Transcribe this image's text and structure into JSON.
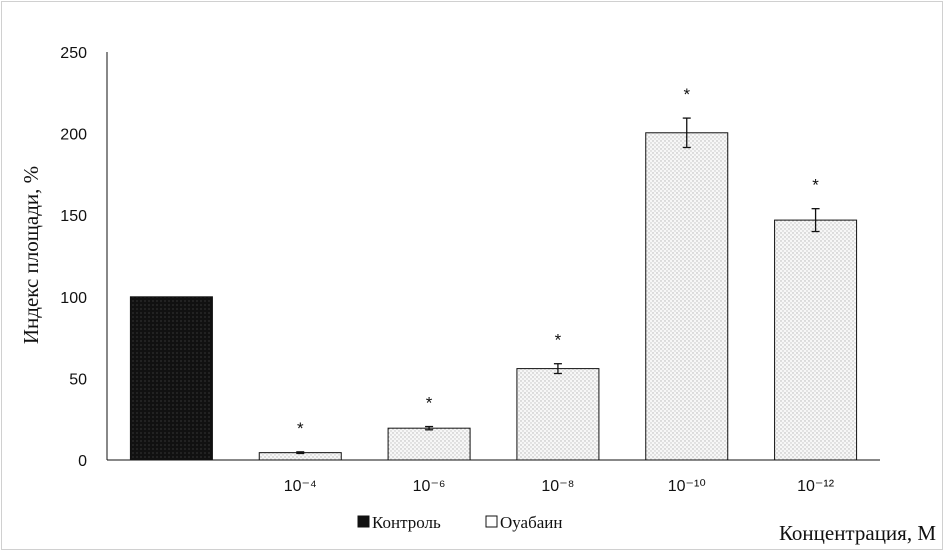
{
  "chart_data": {
    "type": "bar",
    "title": "",
    "xlabel": "Концентрация, М",
    "ylabel": "Индекс площади, %",
    "ylim": [
      0,
      250
    ],
    "yticks": [
      0,
      50,
      100,
      150,
      200,
      250
    ],
    "grid": false,
    "categories": [
      "",
      "10⁻⁴",
      "10⁻⁶",
      "10⁻⁸",
      "10⁻¹⁰",
      "10⁻¹²"
    ],
    "series": [
      {
        "name": "Контроль",
        "color": "#111111",
        "values": [
          100,
          null,
          null,
          null,
          null,
          null
        ],
        "errors": [
          0,
          null,
          null,
          null,
          null,
          null
        ],
        "significance": [
          "",
          null,
          null,
          null,
          null,
          null
        ]
      },
      {
        "name": "Оуабаин",
        "color": "#e6e6e6",
        "values": [
          null,
          4.5,
          19.5,
          56,
          200.5,
          147
        ],
        "errors": [
          null,
          0.5,
          1,
          3,
          9,
          7
        ],
        "significance": [
          null,
          "*",
          "*",
          "*",
          "*",
          "*"
        ]
      }
    ],
    "legend_position": "bottom"
  }
}
